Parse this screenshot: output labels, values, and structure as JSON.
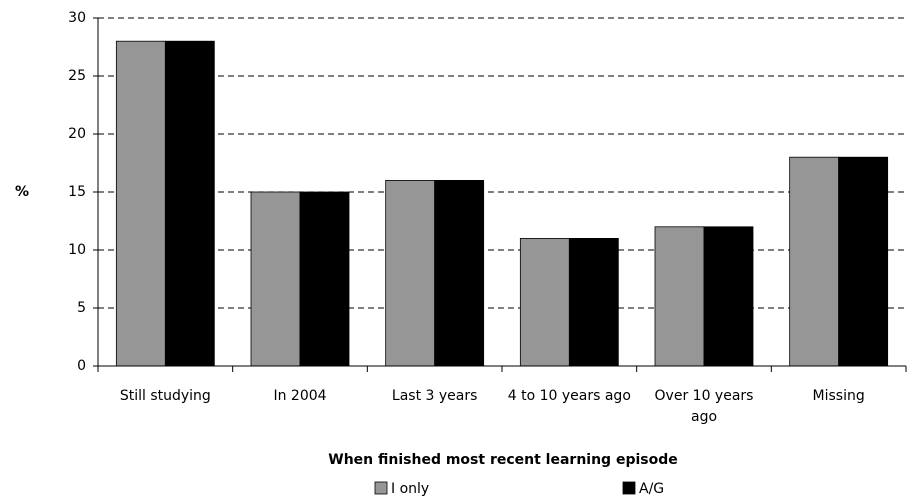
{
  "chart_data": {
    "type": "bar",
    "y_label": "%",
    "x_label": "When finished most recent learning episode",
    "categories": [
      "Still studying",
      "In 2004",
      "Last 3 years",
      "4 to 10 years ago",
      "Over 10 years ago",
      "Missing"
    ],
    "series": [
      {
        "name": "I only",
        "color": "#969696",
        "values": [
          28,
          15,
          16,
          11,
          12,
          18
        ]
      },
      {
        "name": "A/G",
        "color": "#000000",
        "values": [
          28,
          15,
          16,
          11,
          12,
          18
        ]
      }
    ],
    "ylim": [
      0,
      30
    ],
    "yticks": [
      0,
      5,
      10,
      15,
      20,
      25,
      30
    ],
    "grid": true
  }
}
